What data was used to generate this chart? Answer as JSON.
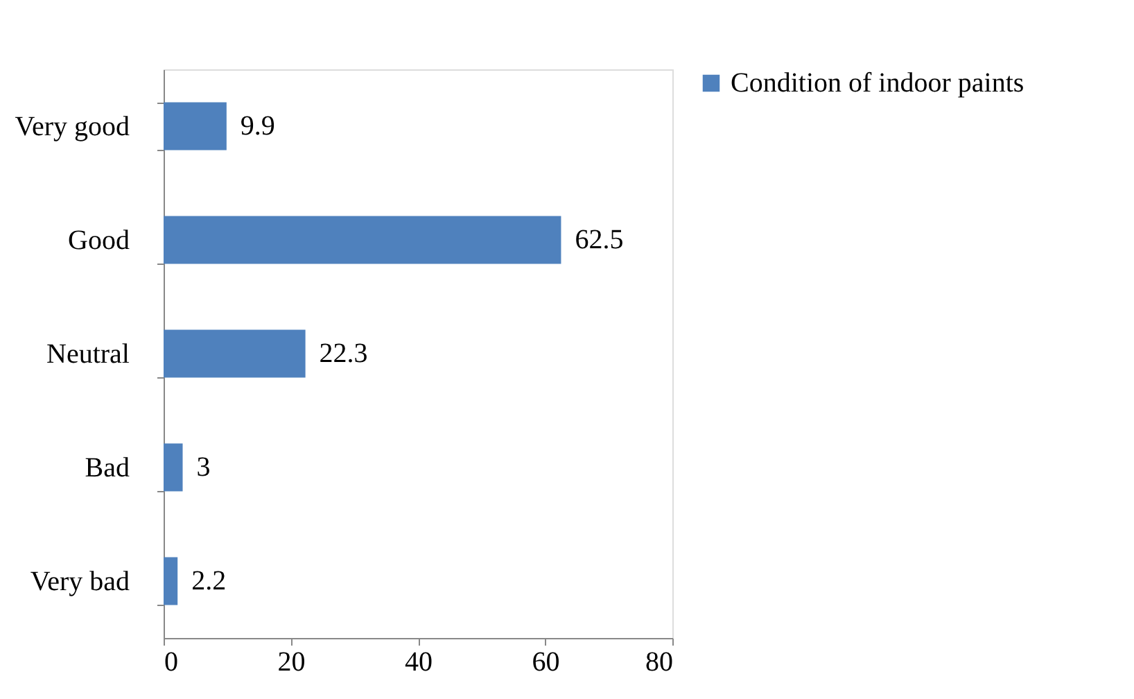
{
  "chart_data": {
    "type": "bar",
    "orientation": "horizontal",
    "categories": [
      "Very good",
      "Good",
      "Neutral",
      "Bad",
      "Very bad"
    ],
    "series": [
      {
        "name": "Condition of indoor paints",
        "color": "#4f81bd",
        "values": [
          9.9,
          62.5,
          22.3,
          3,
          2.2
        ]
      }
    ],
    "xlim": [
      0,
      80
    ],
    "xticks": [
      0,
      20,
      40,
      60,
      80
    ],
    "grid": false,
    "legend": "right",
    "data_labels": true
  }
}
